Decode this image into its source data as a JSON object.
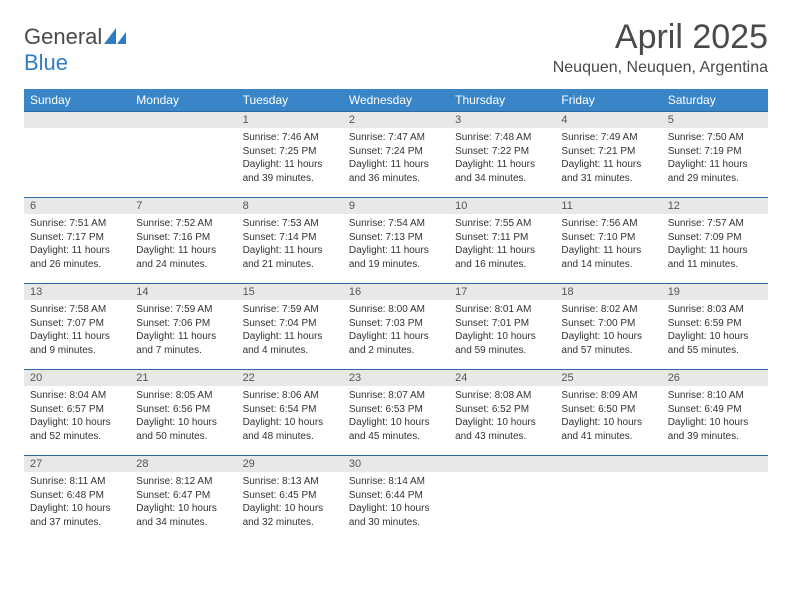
{
  "brand": {
    "part1": "General",
    "part2": "Blue"
  },
  "title": "April 2025",
  "location": "Neuquen, Neuquen, Argentina",
  "colors": {
    "header_bg": "#3a85c8",
    "header_text": "#ffffff",
    "daynum_bg": "#e8e8e8",
    "row_border": "#2d6aa3",
    "brand_blue": "#2d7dc4",
    "brand_gray": "#4a4a4a"
  },
  "weekdays": [
    "Sunday",
    "Monday",
    "Tuesday",
    "Wednesday",
    "Thursday",
    "Friday",
    "Saturday"
  ],
  "weeks": [
    [
      {
        "blank": true
      },
      {
        "blank": true
      },
      {
        "day": "1",
        "sunrise": "7:46 AM",
        "sunset": "7:25 PM",
        "daylight": "11 hours and 39 minutes."
      },
      {
        "day": "2",
        "sunrise": "7:47 AM",
        "sunset": "7:24 PM",
        "daylight": "11 hours and 36 minutes."
      },
      {
        "day": "3",
        "sunrise": "7:48 AM",
        "sunset": "7:22 PM",
        "daylight": "11 hours and 34 minutes."
      },
      {
        "day": "4",
        "sunrise": "7:49 AM",
        "sunset": "7:21 PM",
        "daylight": "11 hours and 31 minutes."
      },
      {
        "day": "5",
        "sunrise": "7:50 AM",
        "sunset": "7:19 PM",
        "daylight": "11 hours and 29 minutes."
      }
    ],
    [
      {
        "day": "6",
        "sunrise": "7:51 AM",
        "sunset": "7:17 PM",
        "daylight": "11 hours and 26 minutes."
      },
      {
        "day": "7",
        "sunrise": "7:52 AM",
        "sunset": "7:16 PM",
        "daylight": "11 hours and 24 minutes."
      },
      {
        "day": "8",
        "sunrise": "7:53 AM",
        "sunset": "7:14 PM",
        "daylight": "11 hours and 21 minutes."
      },
      {
        "day": "9",
        "sunrise": "7:54 AM",
        "sunset": "7:13 PM",
        "daylight": "11 hours and 19 minutes."
      },
      {
        "day": "10",
        "sunrise": "7:55 AM",
        "sunset": "7:11 PM",
        "daylight": "11 hours and 16 minutes."
      },
      {
        "day": "11",
        "sunrise": "7:56 AM",
        "sunset": "7:10 PM",
        "daylight": "11 hours and 14 minutes."
      },
      {
        "day": "12",
        "sunrise": "7:57 AM",
        "sunset": "7:09 PM",
        "daylight": "11 hours and 11 minutes."
      }
    ],
    [
      {
        "day": "13",
        "sunrise": "7:58 AM",
        "sunset": "7:07 PM",
        "daylight": "11 hours and 9 minutes."
      },
      {
        "day": "14",
        "sunrise": "7:59 AM",
        "sunset": "7:06 PM",
        "daylight": "11 hours and 7 minutes."
      },
      {
        "day": "15",
        "sunrise": "7:59 AM",
        "sunset": "7:04 PM",
        "daylight": "11 hours and 4 minutes."
      },
      {
        "day": "16",
        "sunrise": "8:00 AM",
        "sunset": "7:03 PM",
        "daylight": "11 hours and 2 minutes."
      },
      {
        "day": "17",
        "sunrise": "8:01 AM",
        "sunset": "7:01 PM",
        "daylight": "10 hours and 59 minutes."
      },
      {
        "day": "18",
        "sunrise": "8:02 AM",
        "sunset": "7:00 PM",
        "daylight": "10 hours and 57 minutes."
      },
      {
        "day": "19",
        "sunrise": "8:03 AM",
        "sunset": "6:59 PM",
        "daylight": "10 hours and 55 minutes."
      }
    ],
    [
      {
        "day": "20",
        "sunrise": "8:04 AM",
        "sunset": "6:57 PM",
        "daylight": "10 hours and 52 minutes."
      },
      {
        "day": "21",
        "sunrise": "8:05 AM",
        "sunset": "6:56 PM",
        "daylight": "10 hours and 50 minutes."
      },
      {
        "day": "22",
        "sunrise": "8:06 AM",
        "sunset": "6:54 PM",
        "daylight": "10 hours and 48 minutes."
      },
      {
        "day": "23",
        "sunrise": "8:07 AM",
        "sunset": "6:53 PM",
        "daylight": "10 hours and 45 minutes."
      },
      {
        "day": "24",
        "sunrise": "8:08 AM",
        "sunset": "6:52 PM",
        "daylight": "10 hours and 43 minutes."
      },
      {
        "day": "25",
        "sunrise": "8:09 AM",
        "sunset": "6:50 PM",
        "daylight": "10 hours and 41 minutes."
      },
      {
        "day": "26",
        "sunrise": "8:10 AM",
        "sunset": "6:49 PM",
        "daylight": "10 hours and 39 minutes."
      }
    ],
    [
      {
        "day": "27",
        "sunrise": "8:11 AM",
        "sunset": "6:48 PM",
        "daylight": "10 hours and 37 minutes."
      },
      {
        "day": "28",
        "sunrise": "8:12 AM",
        "sunset": "6:47 PM",
        "daylight": "10 hours and 34 minutes."
      },
      {
        "day": "29",
        "sunrise": "8:13 AM",
        "sunset": "6:45 PM",
        "daylight": "10 hours and 32 minutes."
      },
      {
        "day": "30",
        "sunrise": "8:14 AM",
        "sunset": "6:44 PM",
        "daylight": "10 hours and 30 minutes."
      },
      {
        "blank": true
      },
      {
        "blank": true
      },
      {
        "blank": true
      }
    ]
  ],
  "labels": {
    "sunrise": "Sunrise:",
    "sunset": "Sunset:",
    "daylight": "Daylight:"
  }
}
